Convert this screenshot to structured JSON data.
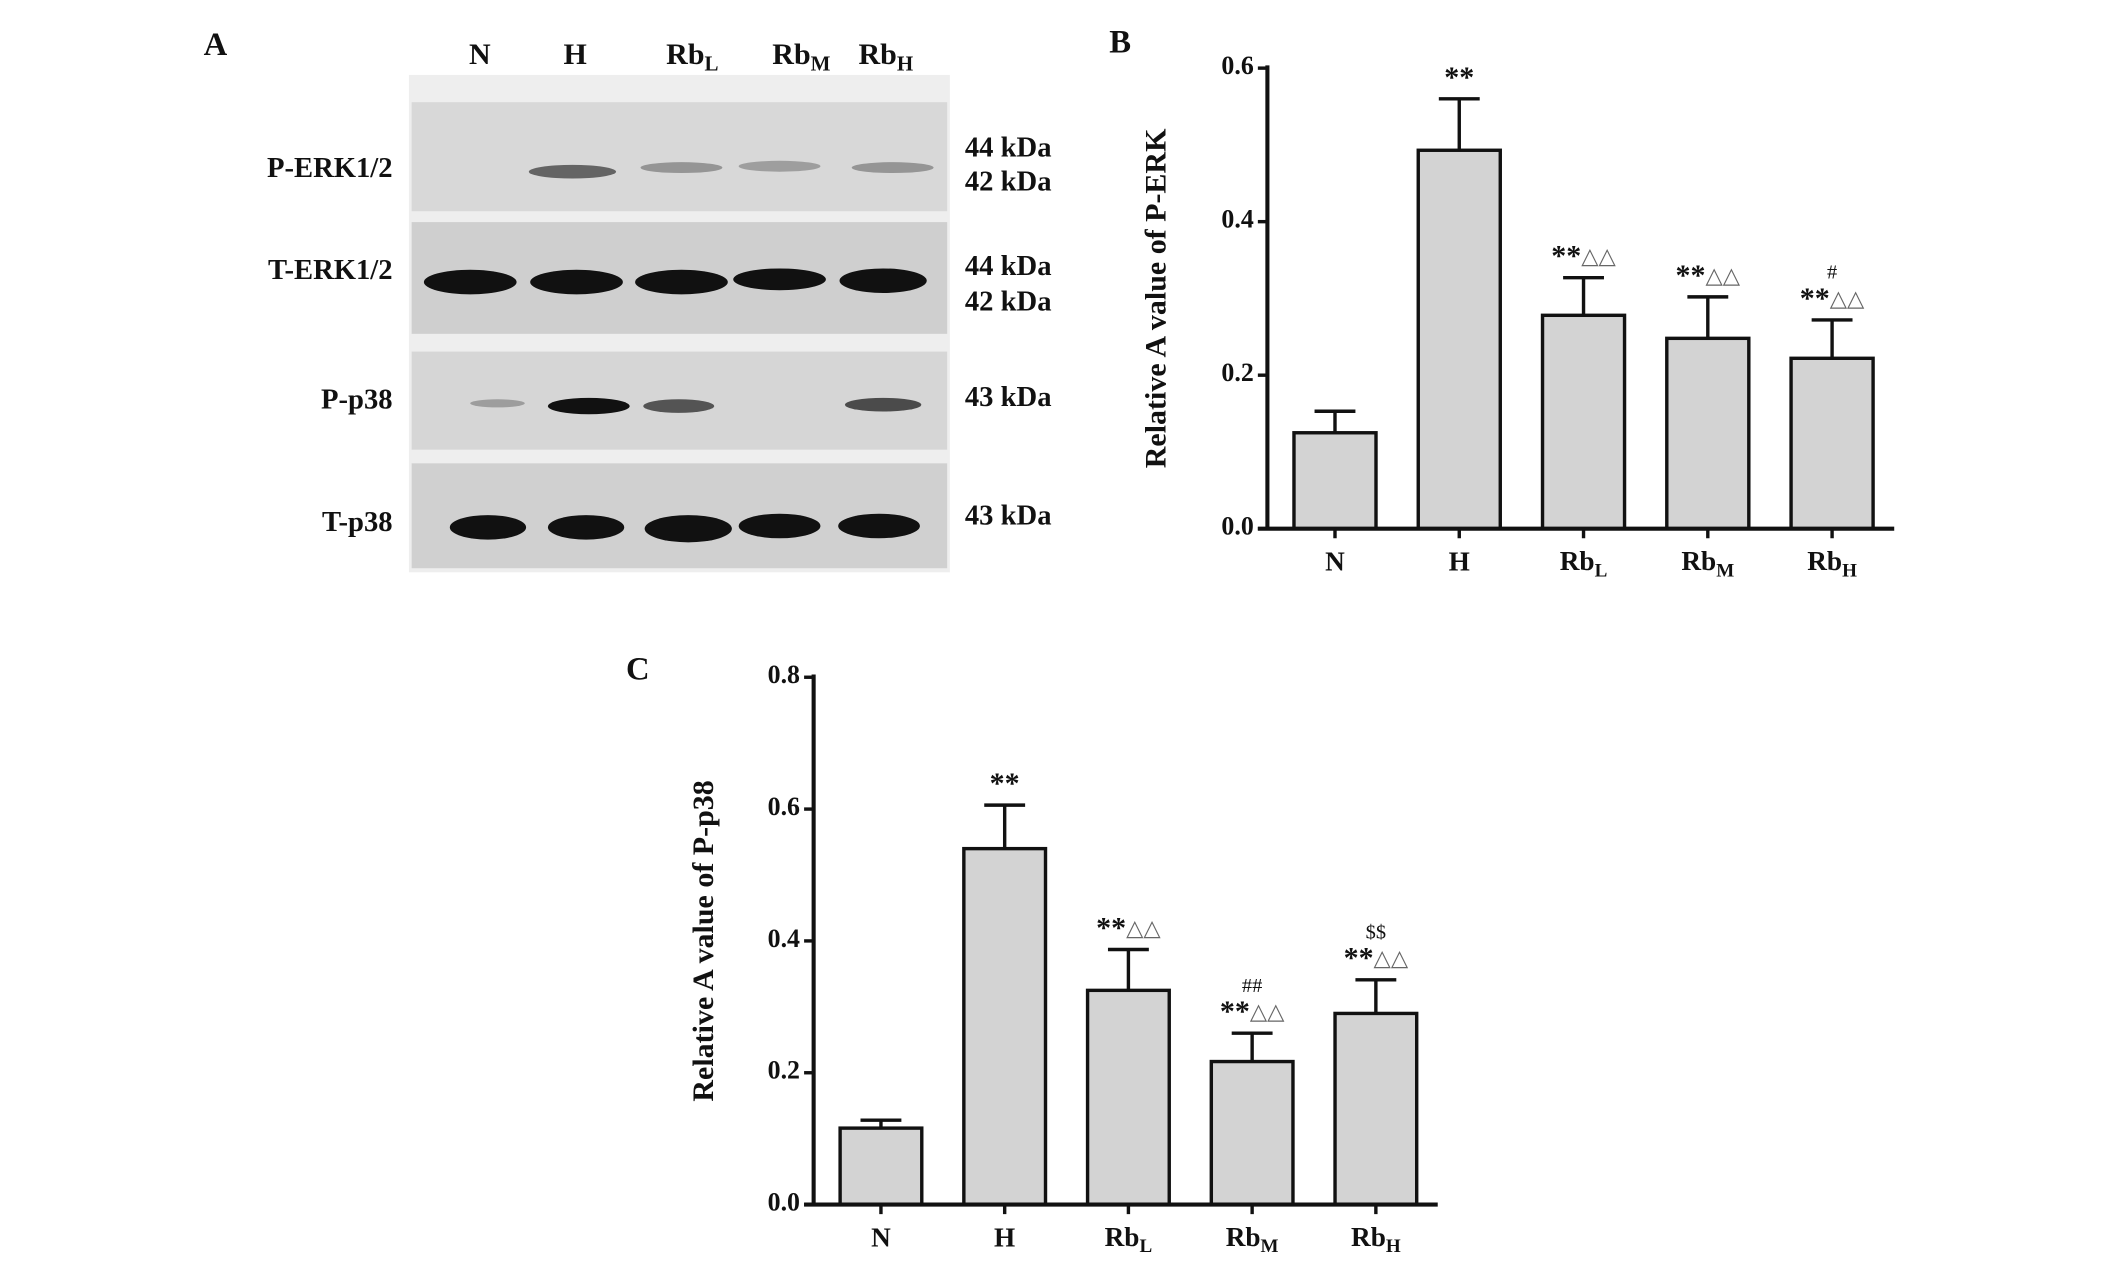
{
  "blot": {
    "panel": "A",
    "lanes": [
      "N",
      "H",
      "RbL",
      "RbM",
      "RbH"
    ],
    "rows": [
      "P-ERK1/2",
      "T-ERK1/2",
      "P-p38",
      "T-p38"
    ],
    "sizes": [
      [
        "44 kDa",
        "42 kDa"
      ],
      [
        "44 kDa",
        "42 kDa"
      ],
      [
        "43 kDa"
      ],
      [
        "43 kDa"
      ]
    ]
  },
  "chart_data": [
    {
      "type": "bar",
      "panel": "B",
      "y_label": "Relative A value of P-ERK",
      "categories": [
        "N",
        "H",
        "RbL",
        "RbM",
        "RbH"
      ],
      "values": [
        0.125,
        0.493,
        0.278,
        0.248,
        0.222
      ],
      "errors": [
        0.028,
        0.067,
        0.049,
        0.054,
        0.05
      ],
      "annotations": [
        null,
        [
          "**"
        ],
        [
          "**△△"
        ],
        [
          "**△△"
        ],
        [
          "#",
          "**△△"
        ]
      ],
      "color": "#d3d3d3",
      "ylim": [
        0,
        0.6
      ],
      "yticks": [
        {
          "value": 0,
          "label": "0.0"
        },
        {
          "value": 0.2,
          "label": "0.2"
        },
        {
          "value": 0.4,
          "label": "0.4"
        },
        {
          "value": 0.6,
          "label": "0.6"
        }
      ]
    },
    {
      "type": "bar",
      "panel": "C",
      "y_label": "Relative A value of P-p38",
      "categories": [
        "N",
        "H",
        "RbL",
        "RbM",
        "RbH"
      ],
      "values": [
        0.116,
        0.54,
        0.325,
        0.217,
        0.29
      ],
      "errors": [
        0.012,
        0.066,
        0.062,
        0.043,
        0.051
      ],
      "annotations": [
        null,
        [
          "**"
        ],
        [
          "**△△"
        ],
        [
          "##",
          "**△△"
        ],
        [
          "$$",
          "**△△"
        ]
      ],
      "color": "#d3d3d3",
      "ylim": [
        0,
        0.8
      ],
      "yticks": [
        {
          "value": 0,
          "label": "0.0"
        },
        {
          "value": 0.2,
          "label": "0.2"
        },
        {
          "value": 0.4,
          "label": "0.4"
        },
        {
          "value": 0.6,
          "label": "0.6"
        },
        {
          "value": 0.8,
          "label": "0.8"
        }
      ]
    }
  ]
}
